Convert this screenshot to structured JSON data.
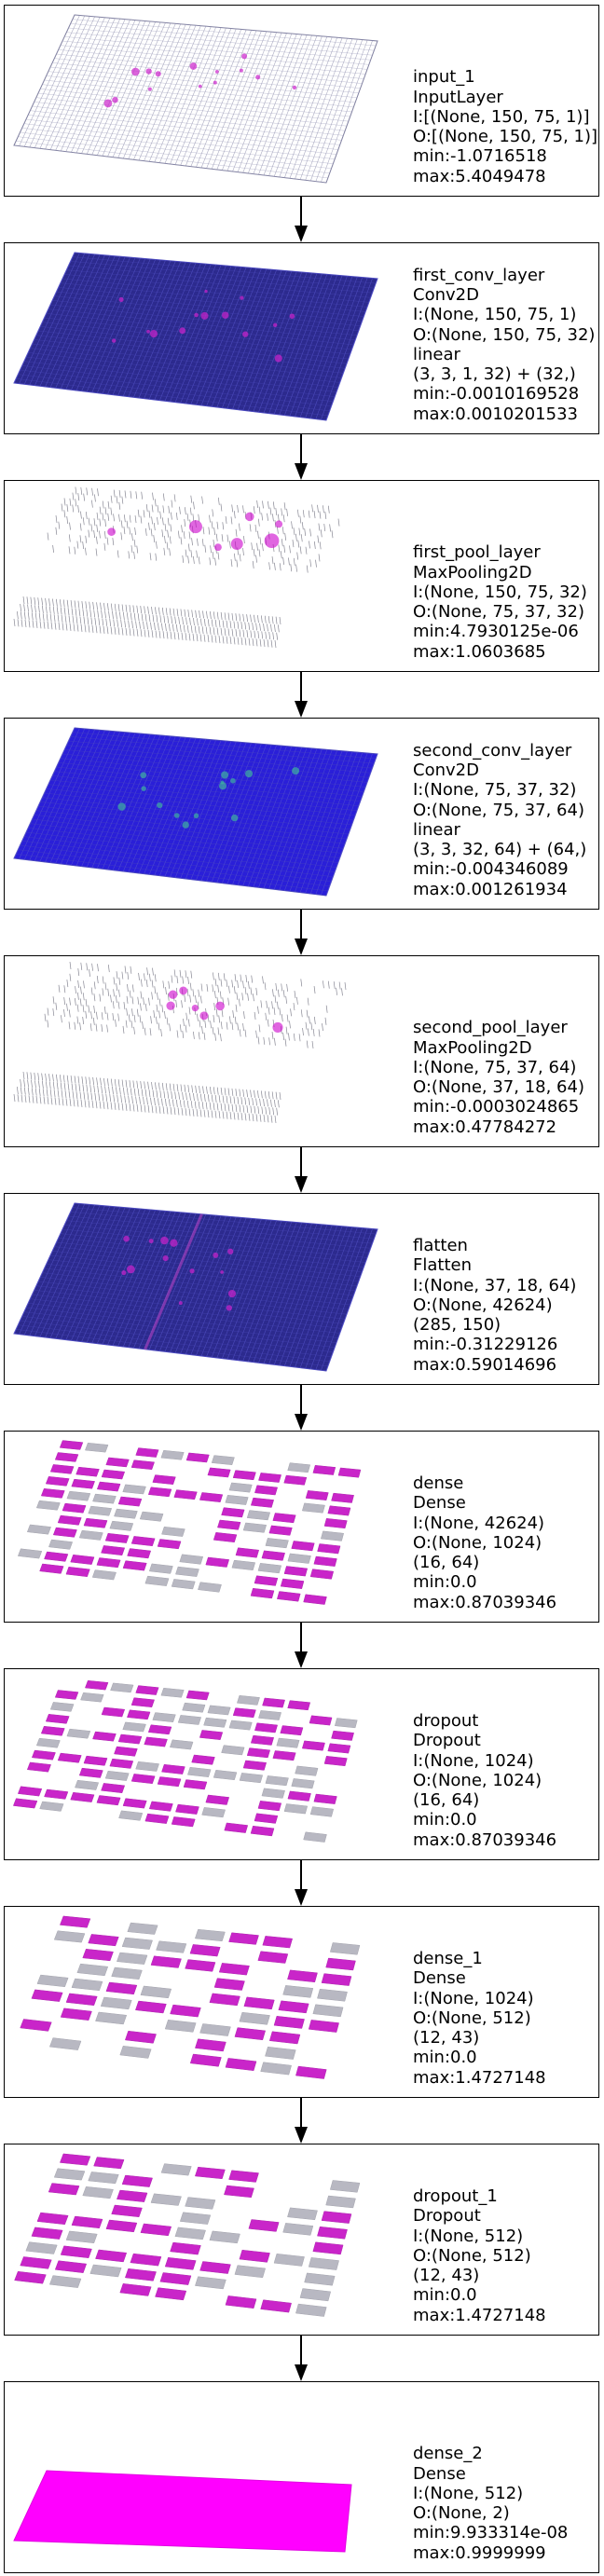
{
  "colors": {
    "border": "#000000",
    "arrow": "#000000",
    "cell_light": "#6f6f8a",
    "cell_blue": "#2a22a8",
    "cell_magenta": "#cc00cc"
  },
  "layers": [
    {
      "name": "input_1",
      "type": "InputLayer",
      "lines": [
        "I:[(None, 150, 75, 1)]",
        "O:[(None, 150, 75, 1)]",
        "min:-1.0716518",
        "max:5.4049478"
      ],
      "viz": "grid-sparse"
    },
    {
      "name": "first_conv_layer",
      "type": "Conv2D",
      "lines": [
        "I:(None, 150, 75, 1)",
        "O:(None, 150, 75, 32)",
        "linear",
        "(3, 3, 1, 32) + (32,)",
        "min:-0.0010169528",
        "max:0.0010201533"
      ],
      "viz": "grid-blue"
    },
    {
      "name": "first_pool_layer",
      "type": "MaxPooling2D",
      "lines": [
        "I:(None, 150, 75, 32)",
        "O:(None, 75, 37, 32)",
        "min:4.7930125e-06",
        "max:1.0603685"
      ],
      "viz": "pool"
    },
    {
      "name": "second_conv_layer",
      "type": "Conv2D",
      "lines": [
        "I:(None, 75, 37, 32)",
        "O:(None, 75, 37, 64)",
        "linear",
        "(3, 3, 32, 64) + (64,)",
        "min:-0.004346089",
        "max:0.001261934"
      ],
      "viz": "grid-blue-bright"
    },
    {
      "name": "second_pool_layer",
      "type": "MaxPooling2D",
      "lines": [
        "I:(None, 75, 37, 64)",
        "O:(None, 37, 18, 64)",
        "min:-0.0003024865",
        "max:0.47784272"
      ],
      "viz": "pool"
    },
    {
      "name": "flatten",
      "type": "Flatten",
      "lines": [
        "I:(None, 37, 18, 64)",
        "O:(None, 42624)",
        "(285, 150)",
        "min:-0.31229126",
        "max:0.59014696"
      ],
      "viz": "grid-blue"
    },
    {
      "name": "dense",
      "type": "Dense",
      "lines": [
        "I:(None, 42624)",
        "O:(None, 1024)",
        "(16, 64)",
        "min:0.0",
        "max:0.87039346"
      ],
      "viz": "blocks"
    },
    {
      "name": "dropout",
      "type": "Dropout",
      "lines": [
        "I:(None, 1024)",
        "O:(None, 1024)",
        "(16, 64)",
        "min:0.0",
        "max:0.87039346"
      ],
      "viz": "blocks"
    },
    {
      "name": "dense_1",
      "type": "Dense",
      "lines": [
        "I:(None, 1024)",
        "O:(None, 512)",
        "(12, 43)",
        "min:0.0",
        "max:1.4727148"
      ],
      "viz": "blocks-large"
    },
    {
      "name": "dropout_1",
      "type": "Dropout",
      "lines": [
        "I:(None, 512)",
        "O:(None, 512)",
        "(12, 43)",
        "min:0.0",
        "max:1.4727148"
      ],
      "viz": "blocks-large"
    },
    {
      "name": "dense_2",
      "type": "Dense",
      "lines": [
        "I:(None, 512)",
        "O:(None, 2)",
        "min:9.933314e-08",
        "max:0.9999999"
      ],
      "viz": "solid"
    }
  ]
}
